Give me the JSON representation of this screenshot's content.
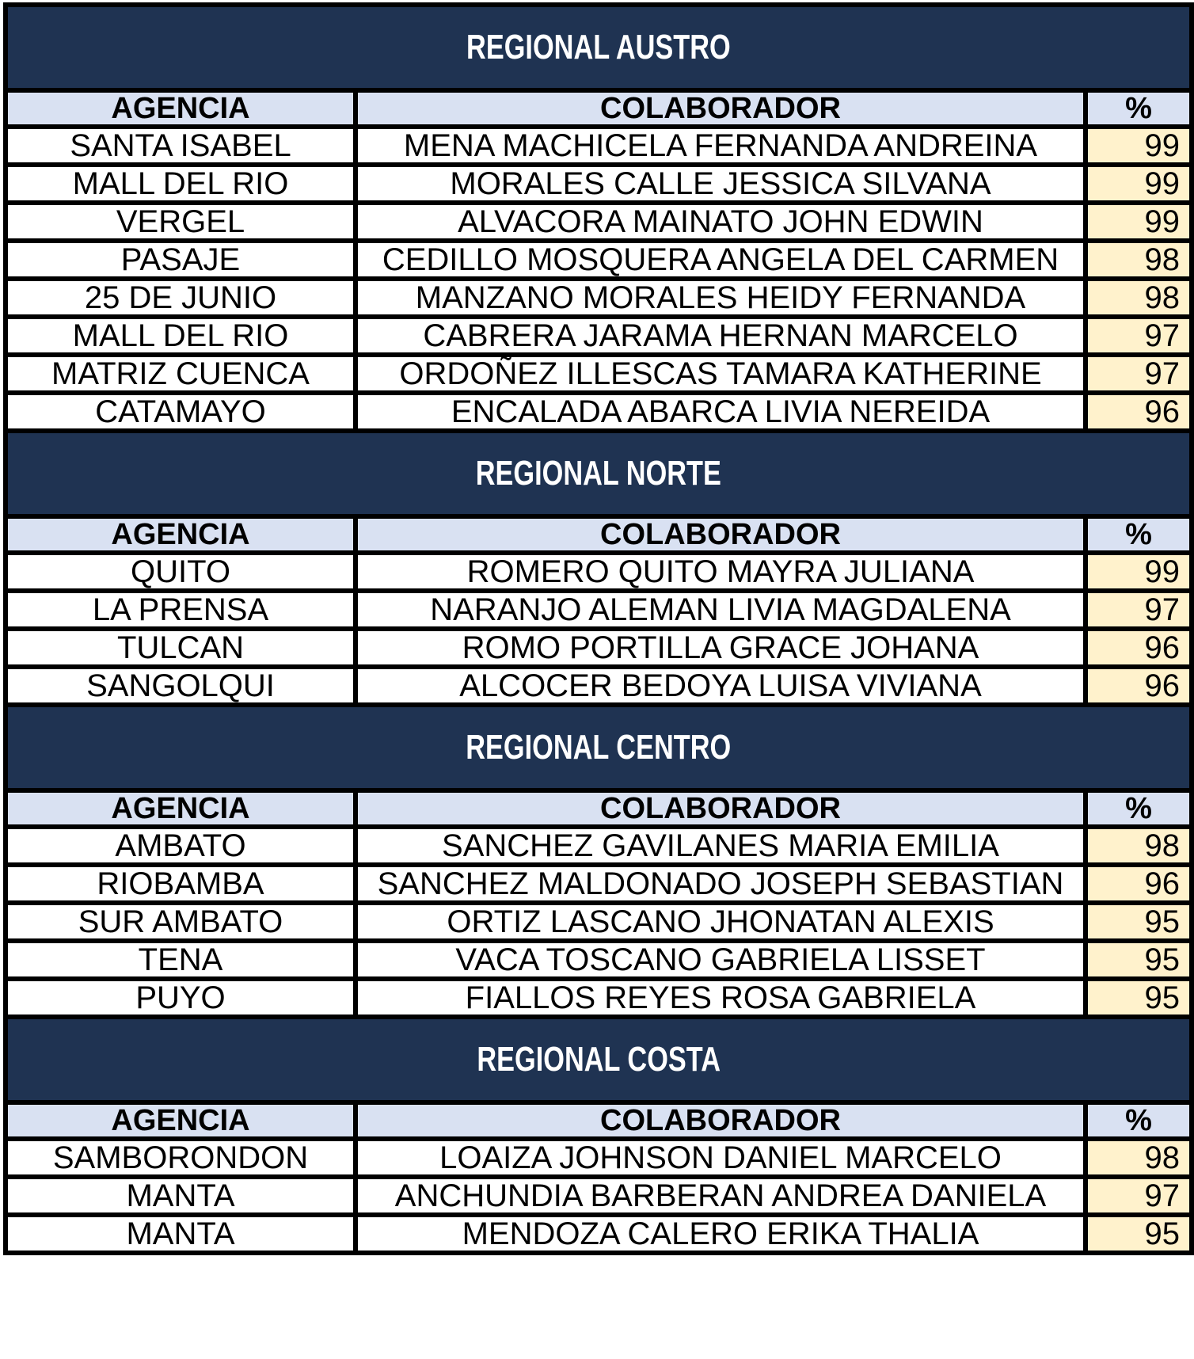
{
  "columns": [
    "AGENCIA",
    "COLABORADOR",
    "%"
  ],
  "colors": {
    "band_background": "#1F3352",
    "band_text": "#FFFFFF",
    "header_row_background": "#D9E1F2",
    "percent_cell_background": "#FFF2CC",
    "grid_border": "#000000",
    "data_text": "#000000"
  },
  "sections": [
    {
      "title": "REGIONAL AUSTRO",
      "rows": [
        [
          "SANTA ISABEL",
          "MENA MACHICELA FERNANDA ANDREINA",
          "99"
        ],
        [
          "MALL DEL RIO",
          "MORALES CALLE JESSICA SILVANA",
          "99"
        ],
        [
          "VERGEL",
          "ALVACORA MAINATO JOHN EDWIN",
          "99"
        ],
        [
          "PASAJE",
          "CEDILLO MOSQUERA ANGELA DEL CARMEN",
          "98"
        ],
        [
          "25 DE JUNIO",
          "MANZANO MORALES HEIDY FERNANDA",
          "98"
        ],
        [
          "MALL DEL RIO",
          "CABRERA JARAMA HERNAN MARCELO",
          "97"
        ],
        [
          "MATRIZ CUENCA",
          "ORDOÑEZ ILLESCAS TAMARA KATHERINE",
          "97"
        ],
        [
          "CATAMAYO",
          "ENCALADA ABARCA LIVIA NEREIDA",
          "96"
        ]
      ]
    },
    {
      "title": "REGIONAL NORTE",
      "rows": [
        [
          "QUITO",
          "ROMERO QUITO MAYRA JULIANA",
          "99"
        ],
        [
          "LA PRENSA",
          "NARANJO ALEMAN LIVIA MAGDALENA",
          "97"
        ],
        [
          "TULCAN",
          "ROMO PORTILLA GRACE JOHANA",
          "96"
        ],
        [
          "SANGOLQUI",
          "ALCOCER BEDOYA LUISA VIVIANA",
          "96"
        ]
      ]
    },
    {
      "title": "REGIONAL CENTRO",
      "rows": [
        [
          "AMBATO",
          "SANCHEZ GAVILANES MARIA EMILIA",
          "98"
        ],
        [
          "RIOBAMBA",
          "SANCHEZ MALDONADO JOSEPH SEBASTIAN",
          "96"
        ],
        [
          "SUR AMBATO",
          "ORTIZ LASCANO JHONATAN ALEXIS",
          "95"
        ],
        [
          "TENA",
          "VACA TOSCANO GABRIELA LISSET",
          "95"
        ],
        [
          "PUYO",
          "FIALLOS REYES ROSA GABRIELA",
          "95"
        ]
      ]
    },
    {
      "title": "REGIONAL COSTA",
      "rows": [
        [
          "SAMBORONDON",
          "LOAIZA JOHNSON DANIEL MARCELO",
          "98"
        ],
        [
          "MANTA",
          "ANCHUNDIA BARBERAN ANDREA DANIELA",
          "97"
        ],
        [
          "MANTA",
          "MENDOZA CALERO ERIKA THALIA",
          "95"
        ]
      ]
    }
  ]
}
